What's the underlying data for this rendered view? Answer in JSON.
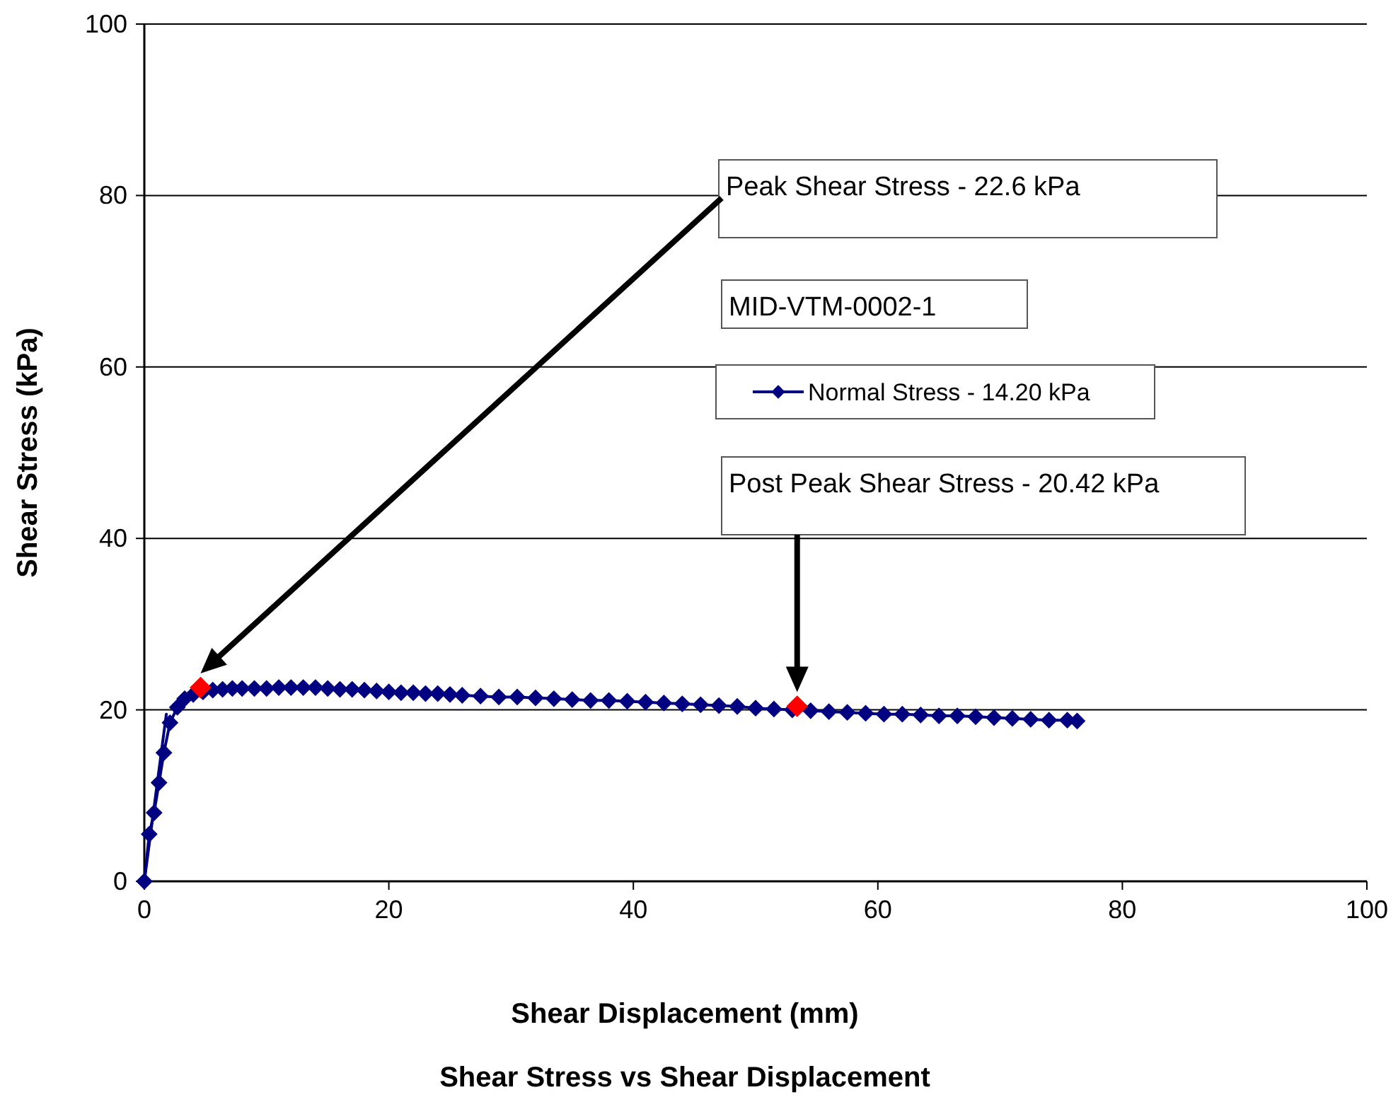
{
  "chart_data": {
    "type": "line",
    "title": "Shear Stress vs Shear Displacement",
    "xlabel": "Shear Displacement (mm)",
    "ylabel": "Shear Stress (kPa)",
    "xlim": [
      0,
      100
    ],
    "xticks": [
      0,
      20,
      40,
      60,
      80,
      100
    ],
    "ylim": [
      0,
      100
    ],
    "yticks": [
      0,
      20,
      40,
      60,
      80,
      100
    ],
    "grid": "y",
    "legend": "right",
    "series": [
      {
        "name": "Normal Stress - 14.20 kPa",
        "color": "#000080",
        "marker": "diamond",
        "x": [
          0,
          0.4,
          0.8,
          1.2,
          1.6,
          2.1,
          2.7,
          3.3,
          4,
          4.8,
          5.6,
          6.4,
          7.2,
          8,
          9,
          10,
          11,
          12,
          13,
          14,
          15,
          16,
          17,
          18,
          19,
          20,
          21,
          22,
          23,
          24,
          25,
          26,
          27.5,
          29,
          30.5,
          32,
          33.5,
          35,
          36.5,
          38,
          39.5,
          41,
          42.5,
          44,
          45.5,
          47,
          48.5,
          50,
          51.5,
          53,
          54.5,
          56,
          57.5,
          59,
          60.5,
          62,
          63.5,
          65,
          66.5,
          68,
          69.5,
          71,
          72.5,
          74,
          75.5,
          76.3
        ],
        "values": [
          0,
          5.5,
          8,
          11.5,
          15,
          18.5,
          20.3,
          21.3,
          21.8,
          22.1,
          22.3,
          22.4,
          22.5,
          22.5,
          22.5,
          22.5,
          22.6,
          22.6,
          22.6,
          22.6,
          22.5,
          22.4,
          22.4,
          22.3,
          22.2,
          22.1,
          22,
          22,
          21.9,
          21.9,
          21.8,
          21.7,
          21.6,
          21.5,
          21.5,
          21.4,
          21.3,
          21.2,
          21.1,
          21.1,
          21,
          20.9,
          20.8,
          20.7,
          20.6,
          20.5,
          20.4,
          20.2,
          20.1,
          20,
          19.9,
          19.8,
          19.7,
          19.6,
          19.5,
          19.5,
          19.4,
          19.3,
          19.3,
          19.2,
          19.1,
          19,
          18.9,
          18.8,
          18.8,
          18.7
        ]
      },
      {
        "color": "#000080",
        "marker": "none",
        "x": [
          0,
          1.8
        ],
        "values": [
          0,
          19.5
        ]
      },
      {
        "type": "scatter",
        "color": "#ff0000",
        "marker": "diamond",
        "x": [
          4.6,
          53.4
        ],
        "values": [
          22.6,
          20.42
        ]
      }
    ],
    "annotations": [
      "Peak Shear Stress - 22.6 kPa",
      "MID-VTM-0002-1",
      "Post Peak Shear Stress - 20.42 kPa"
    ]
  }
}
